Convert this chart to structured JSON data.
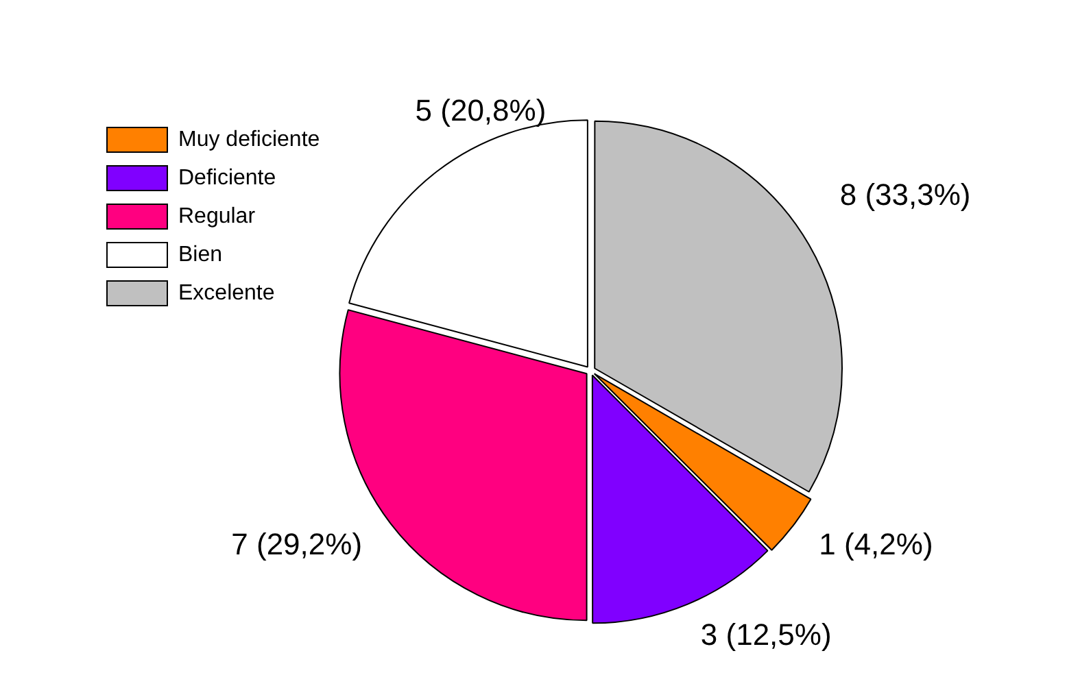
{
  "chart_data": {
    "type": "pie",
    "categories": [
      "Muy deficiente",
      "Deficiente",
      "Regular",
      "Bien",
      "Excelente"
    ],
    "values": [
      1,
      3,
      7,
      5,
      8
    ],
    "colors": [
      "#ff8000",
      "#8000ff",
      "#ff0080",
      "#ffffff",
      "#c0c0c0"
    ],
    "value_labels": [
      "1 (4,2%)",
      "3 (12,5%)",
      "7 (29,2%)",
      "5 (20,8%)",
      "8 (33,3%)"
    ],
    "legend": "top left"
  }
}
